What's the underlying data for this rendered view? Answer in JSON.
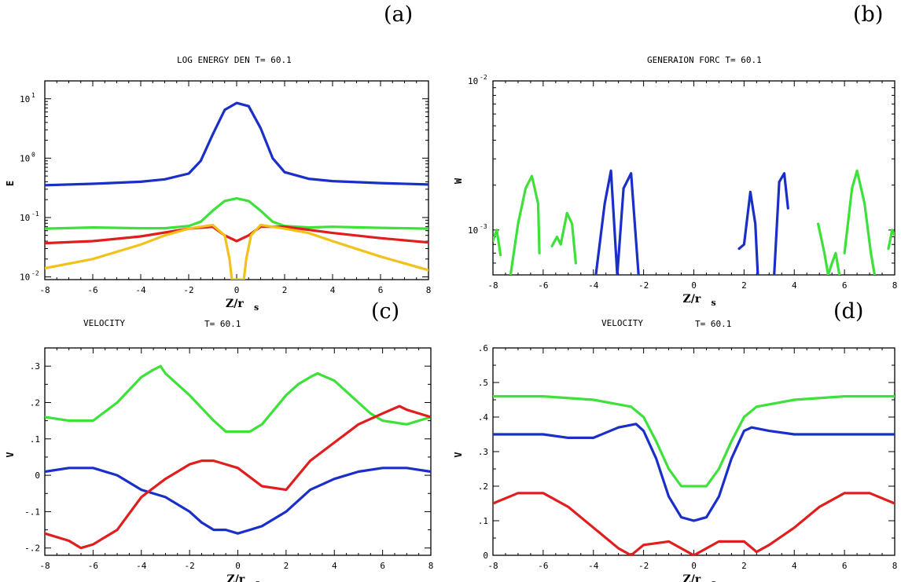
{
  "panel_labels": [
    "(a)",
    "(b)",
    "(c)",
    "(d)"
  ],
  "colors": {
    "blue": "#1a2fc8",
    "green": "#3ee03a",
    "red": "#e01e1e",
    "yellow": "#f2c21a",
    "frame": "#000000"
  },
  "chart_data": [
    {
      "id": "a",
      "type": "line",
      "title": "LOG ENERGY DEN T=  60.1",
      "panel_label": "(a)",
      "xlabel": "Z/r_s",
      "ylabel": "E",
      "yscale": "log",
      "xlim": [
        -8,
        8
      ],
      "ylim": [
        0.009,
        20
      ],
      "xticks": [
        -8,
        -6,
        -4,
        -2,
        0,
        2,
        4,
        6,
        8
      ],
      "xtick_labels": [
        "-8",
        "-6",
        "-4",
        "-2",
        "0",
        "2",
        "4",
        "6",
        "8"
      ],
      "yticks": [
        10,
        1,
        0.1,
        0.01
      ],
      "ytick_labels": [
        "10^1",
        "10^0",
        "10^-1",
        "10^-2"
      ],
      "series": [
        {
          "color": "blue",
          "x": [
            -8,
            -6,
            -4,
            -3,
            -2,
            -1.5,
            -1,
            -0.5,
            0,
            0.5,
            1,
            1.5,
            2,
            3,
            4,
            6,
            8
          ],
          "y": [
            0.35,
            0.37,
            0.4,
            0.44,
            0.55,
            0.9,
            2.5,
            6.5,
            8.5,
            7.5,
            3.2,
            1.0,
            0.58,
            0.45,
            0.41,
            0.38,
            0.36
          ]
        },
        {
          "color": "green",
          "x": [
            -8,
            -6,
            -4,
            -3,
            -2,
            -1.5,
            -1,
            -0.5,
            0,
            0.5,
            1,
            1.5,
            2,
            3,
            4,
            6,
            8
          ],
          "y": [
            0.065,
            0.068,
            0.066,
            0.066,
            0.072,
            0.085,
            0.13,
            0.19,
            0.21,
            0.19,
            0.13,
            0.085,
            0.072,
            0.068,
            0.07,
            0.067,
            0.065
          ]
        },
        {
          "color": "red",
          "x": [
            -8,
            -6,
            -4,
            -2,
            -1,
            -0.5,
            0,
            0.5,
            1,
            2,
            4,
            6,
            8
          ],
          "y": [
            0.037,
            0.04,
            0.048,
            0.065,
            0.07,
            0.05,
            0.04,
            0.05,
            0.07,
            0.07,
            0.055,
            0.045,
            0.038
          ]
        },
        {
          "color": "yellow",
          "x": [
            -8,
            -6,
            -4,
            -3,
            -2,
            -1,
            -0.5,
            -0.3,
            -0.2,
            0.3,
            0.4,
            0.6,
            1,
            2,
            3,
            4,
            6,
            8
          ],
          "y": [
            0.014,
            0.02,
            0.035,
            0.05,
            0.065,
            0.075,
            0.05,
            0.02,
            0.009,
            0.009,
            0.02,
            0.05,
            0.075,
            0.065,
            0.055,
            0.04,
            0.022,
            0.013
          ]
        }
      ]
    },
    {
      "id": "b",
      "type": "line",
      "title": "GENERAION FORC T=  60.1",
      "panel_label": "(b)",
      "xlabel": "Z/r_s",
      "ylabel": "W",
      "yscale": "log",
      "xlim": [
        -8,
        8
      ],
      "ylim": [
        0.0005,
        0.01
      ],
      "xticks": [
        -8,
        -6,
        -4,
        -2,
        0,
        2,
        4,
        6,
        8
      ],
      "xtick_labels": [
        "-8",
        "-6",
        "-4",
        "-2",
        "0",
        "2",
        "4",
        "6",
        "8"
      ],
      "yticks": [
        0.01,
        0.001
      ],
      "ytick_labels": [
        "10^-2",
        "10^-3"
      ],
      "series": [
        {
          "color": "green",
          "x": [
            -8,
            -7.85,
            -7.7
          ],
          "y": [
            0.00085,
            0.001,
            0.00068
          ]
        },
        {
          "color": "green",
          "x": [
            -7.3,
            -7.0,
            -6.7,
            -6.45,
            -6.2,
            -6.15
          ],
          "y": [
            0.0005,
            0.0011,
            0.0019,
            0.0023,
            0.0015,
            0.0007
          ]
        },
        {
          "color": "green",
          "x": [
            -5.65,
            -5.45,
            -5.3,
            -5.05,
            -4.85,
            -4.7
          ],
          "y": [
            0.00078,
            0.0009,
            0.0008,
            0.0013,
            0.0011,
            0.0006
          ]
        },
        {
          "color": "blue",
          "x": [
            -3.9,
            -3.55,
            -3.3,
            -3.05,
            -2.8,
            -2.5,
            -2.2
          ],
          "y": [
            0.0005,
            0.0015,
            0.0025,
            0.0005,
            0.0019,
            0.0024,
            0.0005
          ]
        },
        {
          "color": "blue",
          "x": [
            1.8,
            2.0,
            2.25,
            2.45,
            2.55
          ],
          "y": [
            0.00075,
            0.0008,
            0.0018,
            0.0011,
            0.0005
          ]
        },
        {
          "color": "blue",
          "x": [
            3.2,
            3.4,
            3.6,
            3.75
          ],
          "y": [
            0.0005,
            0.0021,
            0.0024,
            0.0014
          ]
        },
        {
          "color": "green",
          "x": [
            4.95,
            5.2,
            5.35,
            5.5,
            5.65,
            5.8
          ],
          "y": [
            0.0011,
            0.0007,
            0.0005,
            0.0006,
            0.0007,
            0.0005
          ]
        },
        {
          "color": "green",
          "x": [
            6.0,
            6.3,
            6.5,
            6.8,
            7.05,
            7.2
          ],
          "y": [
            0.0007,
            0.0019,
            0.0025,
            0.0015,
            0.0007,
            0.0005
          ]
        },
        {
          "color": "green",
          "x": [
            7.75,
            7.9,
            8.0
          ],
          "y": [
            0.00075,
            0.001,
            0.00092
          ]
        }
      ]
    },
    {
      "id": "c",
      "type": "line",
      "title": "VELOCITY",
      "title2": "T=  60.1",
      "panel_label": "(c)",
      "xlabel": "Z/r_s",
      "ylabel": "V",
      "yscale": "linear",
      "xlim": [
        -8,
        8
      ],
      "ylim": [
        -0.22,
        0.35
      ],
      "xticks": [
        -8,
        -6,
        -4,
        -2,
        0,
        2,
        4,
        6,
        8
      ],
      "xtick_labels": [
        "-8",
        "-6",
        "-4",
        "-2",
        "0",
        "2",
        "4",
        "6",
        "8"
      ],
      "yticks": [
        0.3,
        0.2,
        0.1,
        0,
        -0.1,
        -0.2
      ],
      "ytick_labels": [
        ".3",
        ".2",
        ".1",
        "0",
        "-.1",
        "-.2"
      ],
      "series": [
        {
          "color": "green",
          "x": [
            -8,
            -7,
            -6,
            -5,
            -4,
            -3.5,
            -3.2,
            -3,
            -2,
            -1,
            -0.5,
            0,
            0.5,
            1,
            2,
            2.5,
            3,
            3.3,
            4,
            5,
            5.5,
            6,
            7,
            8
          ],
          "y": [
            0.16,
            0.15,
            0.15,
            0.2,
            0.27,
            0.29,
            0.3,
            0.28,
            0.22,
            0.15,
            0.12,
            0.12,
            0.12,
            0.14,
            0.22,
            0.25,
            0.27,
            0.28,
            0.26,
            0.2,
            0.17,
            0.15,
            0.14,
            0.16
          ]
        },
        {
          "color": "blue",
          "x": [
            -8,
            -7,
            -6,
            -5,
            -4,
            -3,
            -2,
            -1.5,
            -1,
            -0.5,
            0,
            0.5,
            1,
            2,
            3,
            4,
            5,
            6,
            7,
            8
          ],
          "y": [
            0.01,
            0.02,
            0.02,
            0.0,
            -0.04,
            -0.06,
            -0.1,
            -0.13,
            -0.15,
            -0.15,
            -0.16,
            -0.15,
            -0.14,
            -0.1,
            -0.04,
            -0.01,
            0.01,
            0.02,
            0.02,
            0.01
          ]
        },
        {
          "color": "red",
          "x": [
            -8,
            -7,
            -6.5,
            -6,
            -5,
            -4,
            -3,
            -2,
            -1.5,
            -1,
            0,
            1,
            2,
            3,
            4,
            5,
            6,
            6.7,
            7,
            8
          ],
          "y": [
            -0.16,
            -0.18,
            -0.2,
            -0.19,
            -0.15,
            -0.06,
            -0.01,
            0.03,
            0.04,
            0.04,
            0.02,
            -0.03,
            -0.04,
            0.04,
            0.09,
            0.14,
            0.17,
            0.19,
            0.18,
            0.16
          ]
        }
      ]
    },
    {
      "id": "d",
      "type": "line",
      "title": "VELOCITY",
      "title2": "T=  60.1",
      "panel_label": "(d)",
      "xlabel": "Z/r_s",
      "ylabel": "V",
      "yscale": "linear",
      "xlim": [
        -8,
        8
      ],
      "ylim": [
        0,
        0.6
      ],
      "xticks": [
        -8,
        -6,
        -4,
        -2,
        0,
        2,
        4,
        6,
        8
      ],
      "xtick_labels": [
        "-8",
        "-6",
        "-4",
        "-2",
        "0",
        "2",
        "4",
        "6",
        "8"
      ],
      "yticks": [
        0.6,
        0.5,
        0.4,
        0.3,
        0.2,
        0.1,
        0
      ],
      "ytick_labels": [
        ".6",
        ".5",
        ".4",
        ".3",
        ".2",
        ".1",
        "0"
      ],
      "series": [
        {
          "color": "green",
          "x": [
            -8,
            -6,
            -4,
            -2.5,
            -2,
            -1.5,
            -1,
            -0.5,
            0,
            0.5,
            1,
            1.5,
            2,
            2.5,
            4,
            6,
            8
          ],
          "y": [
            0.46,
            0.46,
            0.45,
            0.43,
            0.4,
            0.33,
            0.25,
            0.2,
            0.2,
            0.2,
            0.25,
            0.33,
            0.4,
            0.43,
            0.45,
            0.46,
            0.46
          ]
        },
        {
          "color": "blue",
          "x": [
            -8,
            -6,
            -5,
            -4,
            -3,
            -2.3,
            -2,
            -1.5,
            -1,
            -0.5,
            0,
            0.5,
            1,
            1.5,
            2,
            2.3,
            3,
            4,
            6,
            8
          ],
          "y": [
            0.35,
            0.35,
            0.34,
            0.34,
            0.37,
            0.38,
            0.36,
            0.28,
            0.17,
            0.11,
            0.1,
            0.11,
            0.17,
            0.28,
            0.36,
            0.37,
            0.36,
            0.35,
            0.35,
            0.35
          ]
        },
        {
          "color": "red",
          "x": [
            -8,
            -7,
            -6,
            -5,
            -4,
            -3,
            -2.5,
            -2,
            -1,
            0,
            1,
            2,
            2.5,
            3,
            4,
            5,
            6,
            7,
            8
          ],
          "y": [
            0.15,
            0.18,
            0.18,
            0.14,
            0.08,
            0.02,
            0.0,
            0.03,
            0.04,
            0.0,
            0.04,
            0.04,
            0.01,
            0.03,
            0.08,
            0.14,
            0.18,
            0.18,
            0.15
          ]
        }
      ]
    }
  ]
}
